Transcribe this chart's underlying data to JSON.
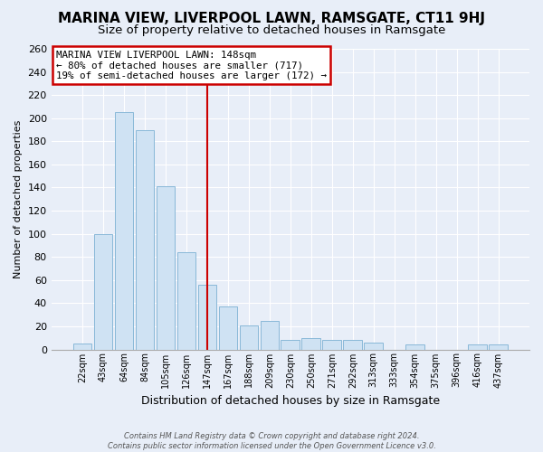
{
  "title": "MARINA VIEW, LIVERPOOL LAWN, RAMSGATE, CT11 9HJ",
  "subtitle": "Size of property relative to detached houses in Ramsgate",
  "xlabel": "Distribution of detached houses by size in Ramsgate",
  "ylabel": "Number of detached properties",
  "bar_labels": [
    "22sqm",
    "43sqm",
    "64sqm",
    "84sqm",
    "105sqm",
    "126sqm",
    "147sqm",
    "167sqm",
    "188sqm",
    "209sqm",
    "230sqm",
    "250sqm",
    "271sqm",
    "292sqm",
    "313sqm",
    "333sqm",
    "354sqm",
    "375sqm",
    "396sqm",
    "416sqm",
    "437sqm"
  ],
  "bar_heights": [
    5,
    100,
    205,
    190,
    141,
    84,
    56,
    37,
    21,
    25,
    8,
    10,
    8,
    8,
    6,
    0,
    4,
    0,
    0,
    4,
    4
  ],
  "bar_color": "#cfe2f3",
  "bar_edge_color": "#89b8d8",
  "marker_index": 6,
  "marker_color": "#cc0000",
  "annotation_lines": [
    "MARINA VIEW LIVERPOOL LAWN: 148sqm",
    "← 80% of detached houses are smaller (717)",
    "19% of semi-detached houses are larger (172) →"
  ],
  "annotation_box_color": "#ffffff",
  "annotation_box_edge": "#cc0000",
  "ylim": [
    0,
    260
  ],
  "yticks": [
    0,
    20,
    40,
    60,
    80,
    100,
    120,
    140,
    160,
    180,
    200,
    220,
    240,
    260
  ],
  "footer_line1": "Contains HM Land Registry data © Crown copyright and database right 2024.",
  "footer_line2": "Contains public sector information licensed under the Open Government Licence v3.0.",
  "bg_color": "#e8eef8",
  "plot_bg_color": "#e8eef8",
  "grid_color": "#ffffff",
  "title_fontsize": 11,
  "subtitle_fontsize": 9.5
}
